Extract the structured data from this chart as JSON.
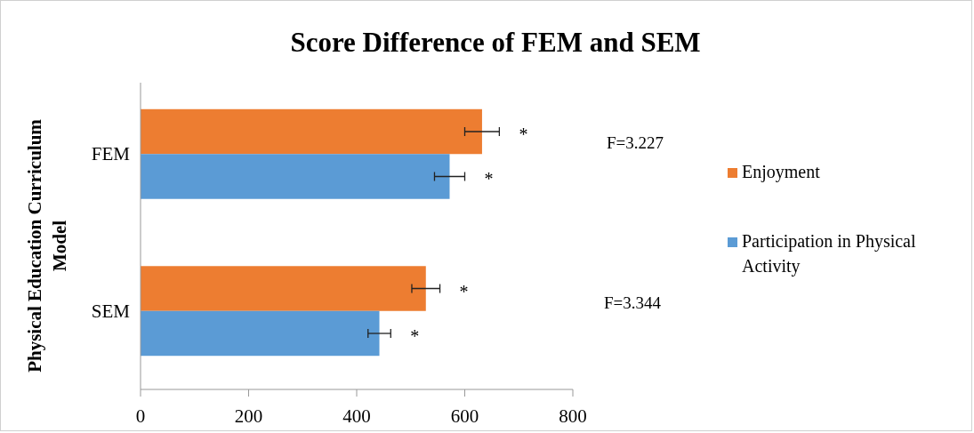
{
  "chart_data": {
    "type": "bar",
    "orientation": "horizontal",
    "title": "Score Difference of FEM and SEM",
    "ylabel": "Physical Education Curriculum Model",
    "categories": [
      "FEM",
      "SEM"
    ],
    "series": [
      {
        "name": "Enjoyment",
        "color": "#ed7d31",
        "values": [
          632,
          528
        ],
        "errors": [
          32,
          26
        ]
      },
      {
        "name": "Participation in Physical Activity",
        "color": "#5b9bd5",
        "values": [
          572,
          442
        ],
        "errors": [
          28,
          21
        ]
      }
    ],
    "xlim": [
      0,
      800
    ],
    "xticks": [
      0,
      200,
      400,
      600,
      800
    ],
    "grid": false,
    "legend": "right",
    "annotations": [
      "*",
      "*",
      "*",
      "*",
      "F=3.227",
      "F=3.344"
    ]
  }
}
